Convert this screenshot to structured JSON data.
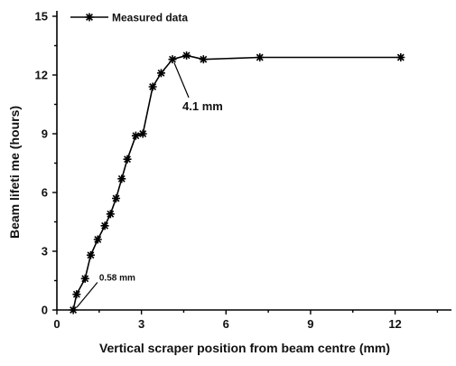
{
  "chart_data": {
    "type": "line",
    "title": "",
    "xlabel": "Vertical scraper position from beam centre (mm)",
    "ylabel": "Beam lifeti me (hours)",
    "xlim": [
      0,
      14
    ],
    "ylim": [
      0,
      15
    ],
    "x_ticks": [
      0,
      3,
      6,
      9,
      12
    ],
    "y_ticks": [
      0,
      3,
      6,
      9,
      12,
      15
    ],
    "x_tick_labels": [
      "0",
      "3",
      "6",
      "9",
      "12"
    ],
    "y_tick_labels": [
      "0",
      "3",
      "6",
      "9",
      "12",
      "15"
    ],
    "legend_position": "top-left",
    "grid": false,
    "series": [
      {
        "name": "Measured data",
        "color": "#000000",
        "marker": "asterisk",
        "x": [
          0.58,
          0.7,
          1.0,
          1.2,
          1.45,
          1.7,
          1.9,
          2.1,
          2.3,
          2.5,
          2.8,
          3.05,
          3.4,
          3.7,
          4.1,
          4.6,
          5.2,
          7.2,
          12.2
        ],
        "y": [
          0.0,
          0.8,
          1.6,
          2.8,
          3.6,
          4.3,
          4.9,
          5.7,
          6.7,
          7.7,
          8.9,
          9.0,
          11.4,
          12.1,
          12.8,
          13.0,
          12.8,
          12.9,
          12.9
        ]
      }
    ],
    "annotations": [
      {
        "text": "0.58 mm",
        "x": 0.58,
        "y": 0.0,
        "label_x": 1.95,
        "label_y": 1.5
      },
      {
        "text": "4.1 mm",
        "x": 4.1,
        "y": 12.8,
        "label_x": 4.55,
        "label_y": 10.2
      }
    ]
  }
}
